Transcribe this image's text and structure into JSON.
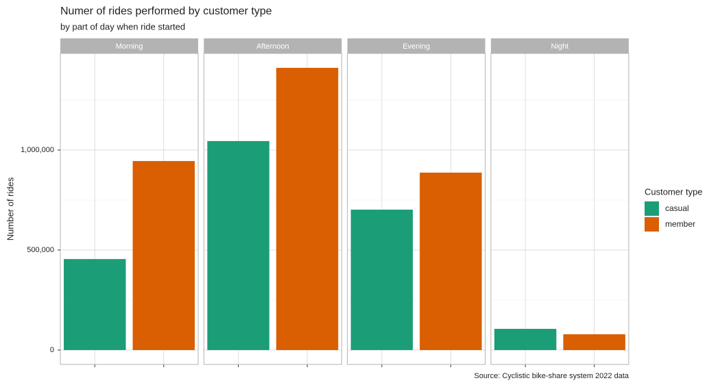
{
  "chart_data": {
    "type": "bar",
    "title": "Numer of rides performed by customer type",
    "subtitle": "by part of day when ride started",
    "y_label": "Number of rides",
    "caption": "Source: Cyclistic bike-share system 2022 data",
    "legend_title": "Customer type",
    "legend_position": "right",
    "facets": [
      "Morning",
      "Afternoon",
      "Evening",
      "Night"
    ],
    "series": [
      {
        "name": "casual",
        "color": "#1b9e77",
        "values": [
          455000,
          1045000,
          702000,
          106000
        ]
      },
      {
        "name": "member",
        "color": "#d95f02",
        "values": [
          945000,
          1411000,
          887000,
          79000
        ]
      }
    ],
    "ylim": [
      -72000,
      1483000
    ],
    "yticks": [
      {
        "value": 0,
        "label": "0"
      },
      {
        "value": 500000,
        "label": "500,000"
      },
      {
        "value": 1000000,
        "label": "1,000,000"
      }
    ],
    "minor_yticks": [
      250000,
      750000,
      1250000
    ],
    "grid": true
  }
}
